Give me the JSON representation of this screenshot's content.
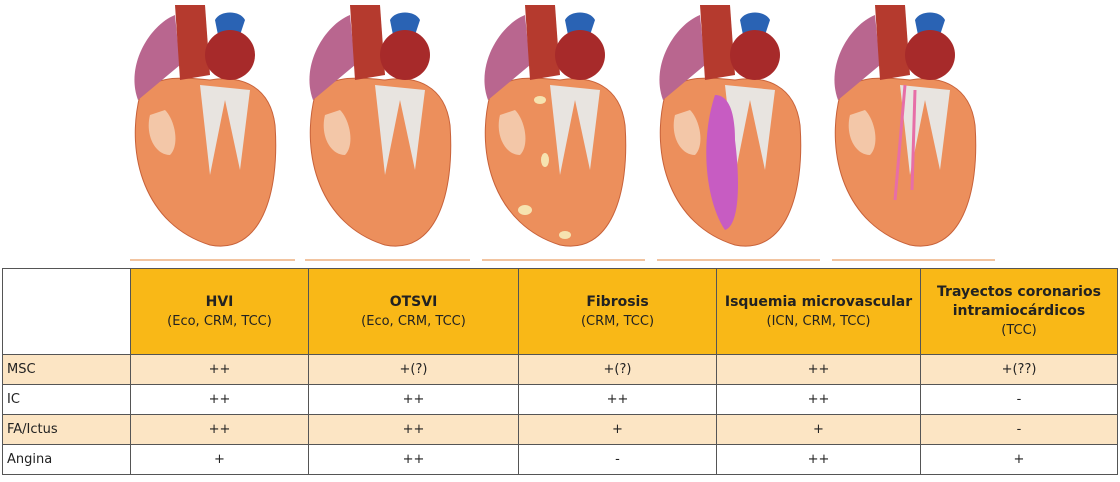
{
  "table": {
    "header": [
      {
        "title": "HVI",
        "subtitle": "(Eco, CRM, TCC)"
      },
      {
        "title": "OTSVI",
        "subtitle": "(Eco, CRM, TCC)"
      },
      {
        "title": "Fibrosis",
        "subtitle": "(CRM, TCC)"
      },
      {
        "title": "Isquemia microvascular",
        "subtitle": "(ICN, CRM, TCC)"
      },
      {
        "title": "Trayectos coronarios intramiocárdicos",
        "subtitle": "(TCC)"
      }
    ],
    "rows": [
      [
        "MSC",
        "++",
        "+(?)",
        "+(?)",
        "++",
        "+(??)"
      ],
      [
        "IC",
        "++",
        "++",
        "++",
        "++",
        "-"
      ],
      [
        "FA/Ictus",
        "++",
        "++",
        "+",
        "+",
        "-"
      ],
      [
        "Angina",
        "+",
        "++",
        "-",
        "++",
        "+"
      ]
    ]
  }
}
